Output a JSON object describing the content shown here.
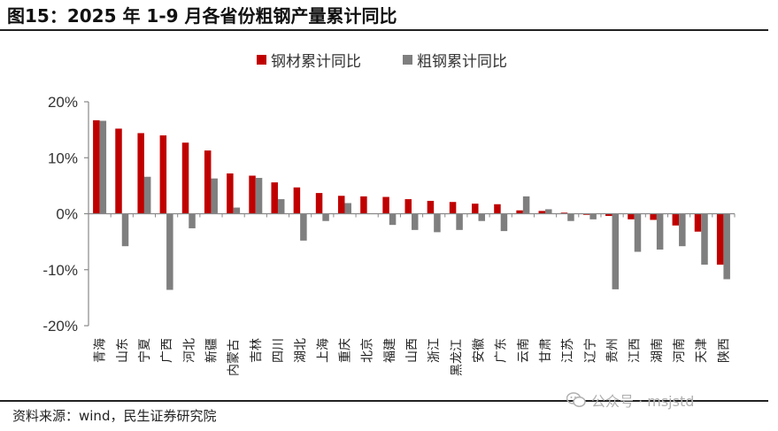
{
  "header": {
    "title": "图15：2025 年 1-9 月各省份粗钢产量累计同比"
  },
  "footer": {
    "source": "资料来源：wind，民生证券研究院",
    "watermark": "公众号 · msjstd"
  },
  "colors": {
    "series1": "#C00000",
    "series2": "#7F7F7F",
    "axis": "#888888"
  },
  "chart_data": {
    "type": "bar",
    "title": "2025 年 1-9 月各省份粗钢产量累计同比",
    "xlabel": "",
    "ylabel": "",
    "ylim": [
      -20,
      20
    ],
    "yticks": [
      20,
      10,
      0,
      -10,
      -20
    ],
    "ytick_labels": [
      "20%",
      "10%",
      "0%",
      "-10%",
      "-20%"
    ],
    "legend_position": "top-center",
    "categories": [
      "青海",
      "山东",
      "宁夏",
      "广西",
      "河北",
      "新疆",
      "内蒙古",
      "吉林",
      "四川",
      "湖北",
      "上海",
      "重庆",
      "北京",
      "福建",
      "山西",
      "浙江",
      "黑龙江",
      "安徽",
      "广东",
      "云南",
      "甘肃",
      "江苏",
      "辽宁",
      "贵州",
      "江西",
      "湖南",
      "河南",
      "天津",
      "陕西"
    ],
    "series": [
      {
        "name": "钢材累计同比",
        "values": [
          16.7,
          15.2,
          14.4,
          14.0,
          12.7,
          11.3,
          7.2,
          6.8,
          5.6,
          4.7,
          3.7,
          3.2,
          3.1,
          3.0,
          2.6,
          2.3,
          2.1,
          1.8,
          1.7,
          0.6,
          0.5,
          0.2,
          -0.2,
          -0.4,
          -1.0,
          -1.1,
          -2.1,
          -3.2,
          -9.1
        ]
      },
      {
        "name": "粗钢累计同比",
        "values": [
          16.6,
          -5.8,
          6.6,
          -13.6,
          -2.6,
          6.3,
          1.1,
          6.4,
          2.6,
          -4.8,
          -1.3,
          1.9,
          null,
          -2.0,
          -2.9,
          -3.3,
          -2.9,
          -1.3,
          -3.1,
          3.1,
          0.8,
          -1.3,
          -1.0,
          -13.5,
          -6.8,
          -6.4,
          -5.8,
          -9.1,
          -11.7
        ]
      }
    ]
  }
}
